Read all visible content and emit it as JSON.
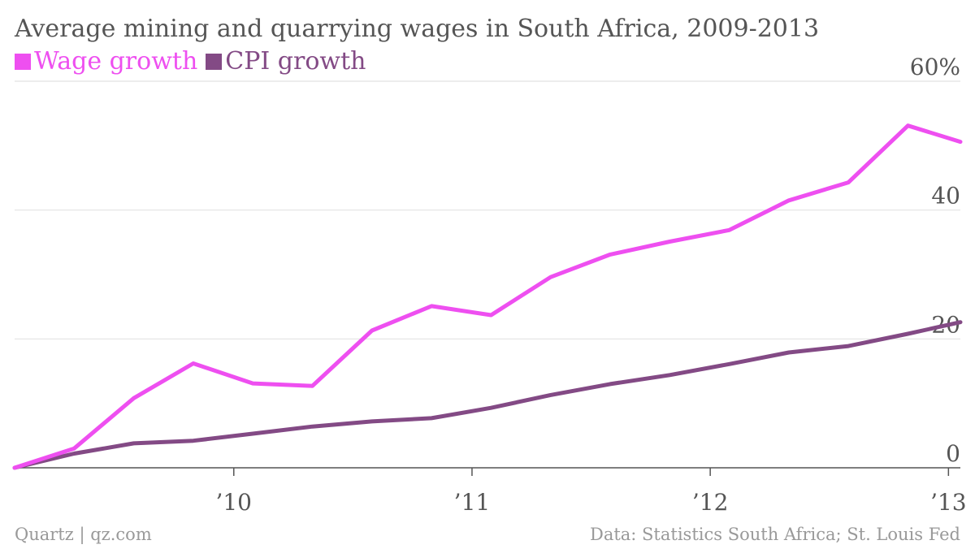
{
  "chart_data": {
    "type": "line",
    "title": "Average mining and quarrying wages in South Africa, 2009-2013",
    "x_tick_labels": [
      "’10",
      "’11",
      "’12",
      "’13"
    ],
    "x_tick_positions": [
      2010,
      2011,
      2012,
      2013
    ],
    "xlim": [
      2009.08,
      2013.05
    ],
    "ylim": [
      0,
      60
    ],
    "y_ticks": [
      0,
      20,
      40,
      60
    ],
    "y_tick_labels": [
      "0",
      "20",
      "40",
      "60%"
    ],
    "grid": true,
    "legend_position": "top-left",
    "x": [
      2009.08,
      2009.33,
      2009.58,
      2009.83,
      2010.08,
      2010.33,
      2010.58,
      2010.83,
      2011.08,
      2011.33,
      2011.58,
      2011.83,
      2012.08,
      2012.33,
      2012.58,
      2012.83,
      2013.05
    ],
    "series": [
      {
        "name": "Wage growth",
        "color": "#ee4ff0",
        "values": [
          0,
          3,
          10.8,
          16.2,
          13.1,
          12.7,
          21.3,
          25.1,
          23.7,
          29.6,
          33.1,
          35.1,
          36.9,
          41.5,
          44.3,
          53.1,
          50.6
        ]
      },
      {
        "name": "CPI growth",
        "color": "#834a85",
        "values": [
          0,
          2.2,
          3.8,
          4.2,
          5.3,
          6.4,
          7.2,
          7.7,
          9.3,
          11.3,
          13.0,
          14.4,
          16.1,
          17.9,
          18.9,
          20.8,
          22.6
        ]
      }
    ]
  },
  "footer": {
    "source_left": "Quartz | qz.com",
    "source_right": "Data: Statistics South Africa; St. Louis Fed"
  }
}
